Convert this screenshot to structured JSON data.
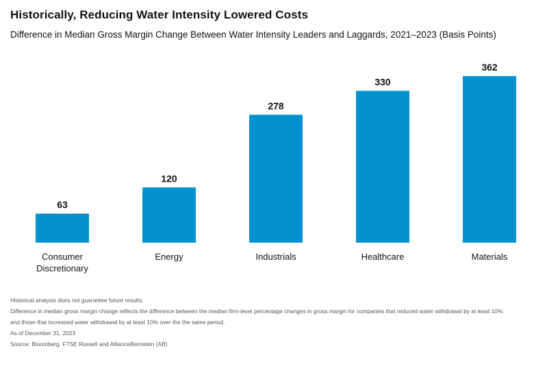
{
  "header": {
    "title": "Historically, Reducing Water Intensity Lowered Costs",
    "subtitle": "Difference in Median Gross Margin Change Between Water Intensity Leaders and Laggards, 2021–2023 (Basis Points)"
  },
  "chart_data": {
    "type": "bar",
    "categories": [
      "Consumer Discretionary",
      "Energy",
      "Industrials",
      "Healthcare",
      "Materials"
    ],
    "category_lines": [
      [
        "Consumer",
        "Discretionary"
      ],
      [
        "Energy"
      ],
      [
        "Industrials"
      ],
      [
        "Healthcare"
      ],
      [
        "Materials"
      ]
    ],
    "values": [
      63,
      120,
      278,
      330,
      362
    ],
    "value_labels": [
      "63",
      "120",
      "278",
      "330",
      "362"
    ],
    "ylim": [
      0,
      362
    ],
    "grid": false,
    "bar_color": "#0392cf",
    "label_color": "#111111"
  },
  "footer": {
    "notes": [
      "Historical analysis does not guarantee future results.",
      "Difference in median gross margin change reflects the difference between the median firm-level percentage changes in gross margin for companies that reduced water withdrawal by at least 10%",
      "and those that increased water withdrawal by at least 10% over the the same period.",
      "As of December 31, 2023",
      "Source: Bloomberg, FTSE Russell and AllianceBernstein (AB)"
    ]
  }
}
